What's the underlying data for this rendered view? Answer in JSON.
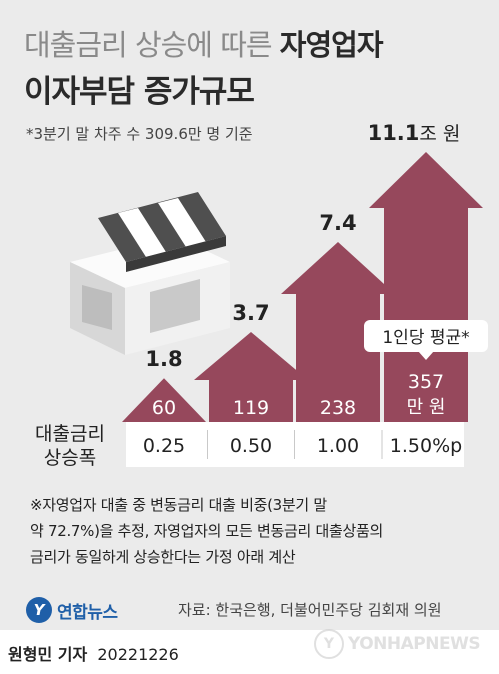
{
  "title": {
    "light": "대출금리 상승에 따른 ",
    "bold": "자영업자",
    "line2": "이자부담 증가규모"
  },
  "basis_note": "*3분기 말 차주 수 309.6만 명 기준",
  "chart_data": {
    "type": "bar",
    "categories": [
      "0.25",
      "0.50",
      "1.00",
      "1.50%p"
    ],
    "row_label": "대출금리\n상승폭",
    "series": [
      {
        "values": [
          1.8,
          3.7,
          7.4,
          11.1
        ]
      }
    ],
    "value_labels": [
      "1.8",
      "3.7",
      "7.4",
      "11.1"
    ],
    "top_value_unit": "조 원",
    "per_capita": [
      "60",
      "119",
      "238",
      "357"
    ],
    "per_capita_unit": "만 원",
    "per_capita_caption": "1인당 평균*",
    "colors": {
      "bar": "#96485c",
      "bar_text": "#ffffff",
      "caption_bg": "#ffffff"
    }
  },
  "footnote": [
    "※자영업자 대출 중 변동금리 대출 비중(3분기 말",
    "약 72.7%)을 추정, 자영업자의 모든 변동금리 대출상품의",
    "금리가 동일하게 상승한다는 가정 아래 계산"
  ],
  "logo": {
    "mark": "Y",
    "text": "연합뉴스"
  },
  "source": "자료: 한국은행, 더불어민주당 김회재 의원",
  "byline": {
    "name": "원형민 기자",
    "date": "20221226"
  },
  "watermark": {
    "mark": "Y",
    "text": "YONHAPNEWS"
  }
}
